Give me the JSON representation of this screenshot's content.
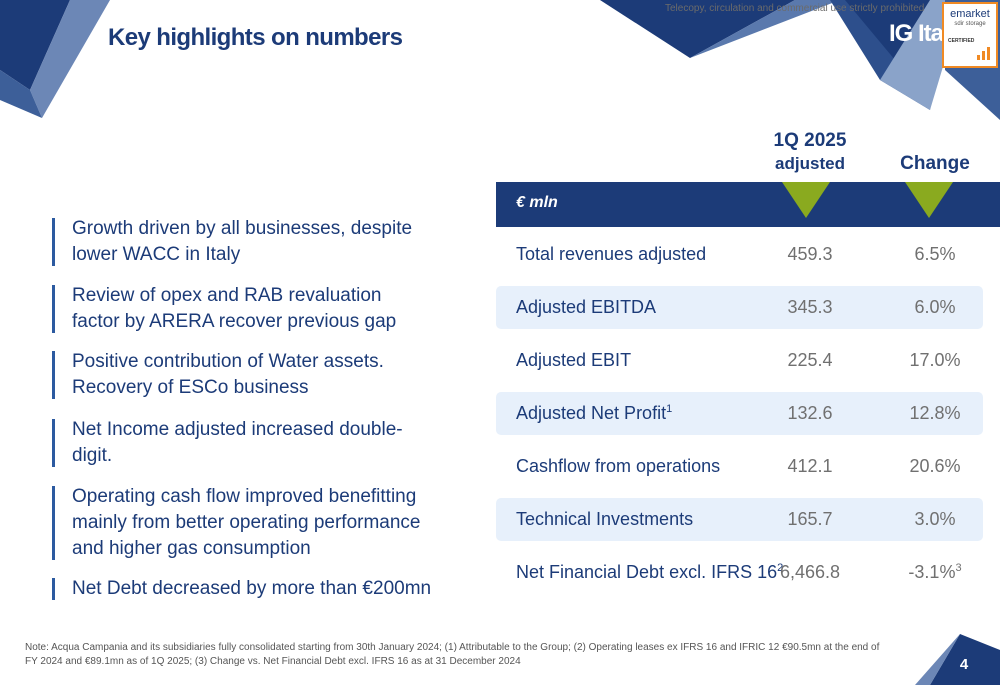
{
  "header": {
    "title": "Key highlights on numbers",
    "confidential_text": "Telecopy, circulation and commercial use strictly prohibited",
    "logo_text": "IG Ita",
    "badge": {
      "brand": "emarket",
      "sub": "sdir storage",
      "cert": "CERTIFIED"
    }
  },
  "bullets": [
    "Growth driven by all businesses, despite lower WACC in Italy",
    "Review of opex and RAB revaluation factor by ARERA recover previous gap",
    "Positive contribution of Water assets. Recovery of ESCo business",
    "Net Income adjusted increased double-digit.",
    "Operating cash flow improved benefitting mainly from better operating performance and higher gas consumption",
    "Net Debt decreased by more than €200mn"
  ],
  "table": {
    "col_period_line1": "1Q 2025",
    "col_period_line2": "adjusted",
    "col_change": "Change",
    "unit_label": "€ mln",
    "rows": [
      {
        "label": "Total revenues adjusted",
        "sup": "",
        "value": "459.3",
        "change": "6.5%",
        "change_sup": ""
      },
      {
        "label": "Adjusted EBITDA",
        "sup": "",
        "value": "345.3",
        "change": "6.0%",
        "change_sup": ""
      },
      {
        "label": "Adjusted EBIT",
        "sup": "",
        "value": "225.4",
        "change": "17.0%",
        "change_sup": ""
      },
      {
        "label": "Adjusted Net Profit",
        "sup": "1",
        "value": "132.6",
        "change": "12.8%",
        "change_sup": ""
      },
      {
        "label": "Cashflow from operations",
        "sup": "",
        "value": "412.1",
        "change": "20.6%",
        "change_sup": ""
      },
      {
        "label": "Technical Investments",
        "sup": "",
        "value": "165.7",
        "change": "3.0%",
        "change_sup": ""
      },
      {
        "label": "Net Financial Debt excl. IFRS 16",
        "sup": "2",
        "value": "6,466.8",
        "change": "-3.1%",
        "change_sup": "3"
      }
    ]
  },
  "footnote": "Note: Acqua Campania and its subsidiaries fully consolidated starting from 30th January 2024; (1) Attributable to the Group; (2) Operating leases ex IFRS 16 and IFRIC 12 €90.5mn at the end of FY 2024 and €89.1mn as of 1Q 2025; (3) Change vs. Net Financial Debt excl. IFRS 16 as at 31 December 2024",
  "page_number": "4",
  "colors": {
    "navy": "#1c3b78",
    "accent_green": "#8aaa1f",
    "row_shade": "#e7f0fb",
    "badge_orange": "#f08a24"
  }
}
